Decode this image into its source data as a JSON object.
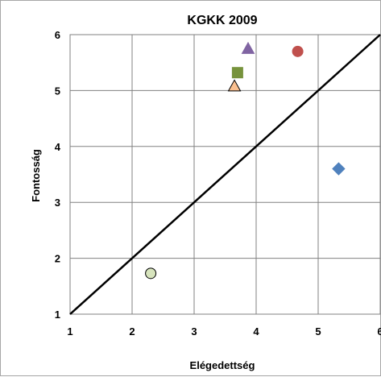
{
  "chart_data": {
    "type": "scatter",
    "title": "KGKK 2009",
    "xlabel": "Elégedettség",
    "ylabel": "Fontosság",
    "xlim": [
      1,
      6
    ],
    "ylim": [
      1,
      6
    ],
    "xticks": [
      "1",
      "2",
      "3",
      "4",
      "5",
      "6"
    ],
    "yticks": [
      "1",
      "2",
      "3",
      "4",
      "5",
      "6"
    ],
    "grid": true,
    "legend": "none",
    "reference_line": {
      "x": [
        1,
        6
      ],
      "y": [
        1,
        6
      ],
      "color": "#000000"
    },
    "points": [
      {
        "x": 5.33,
        "y": 3.6,
        "marker": "diamond",
        "color": "#4f81bd"
      },
      {
        "x": 4.67,
        "y": 5.7,
        "marker": "circle",
        "color": "#c0504d"
      },
      {
        "x": 3.87,
        "y": 5.75,
        "marker": "triangle",
        "color": "#8064a2"
      },
      {
        "x": 3.7,
        "y": 5.32,
        "marker": "square",
        "color": "#77933c"
      },
      {
        "x": 3.65,
        "y": 5.08,
        "marker": "triangle",
        "color": "#fac090"
      },
      {
        "x": 2.3,
        "y": 1.73,
        "marker": "circle",
        "color": "#d7e4bd"
      }
    ]
  }
}
